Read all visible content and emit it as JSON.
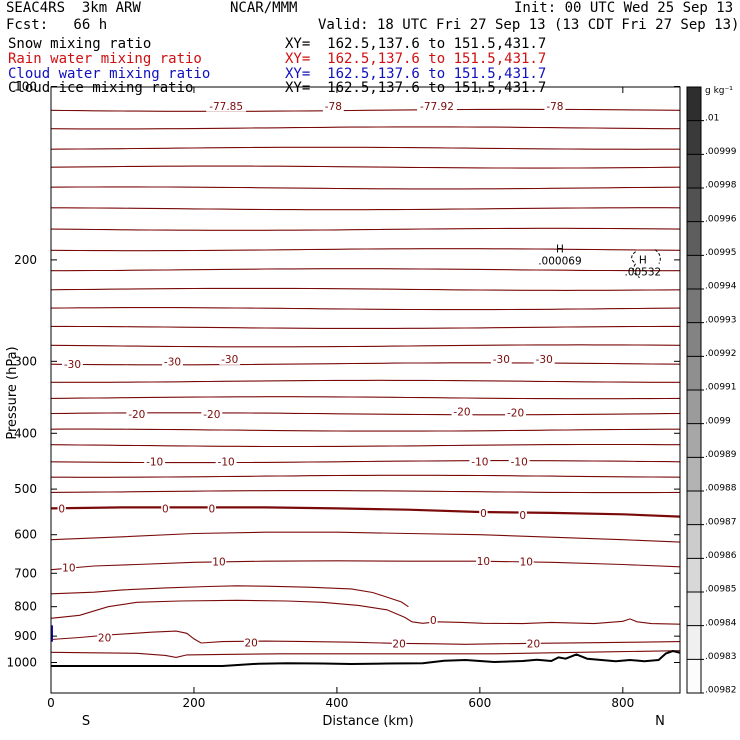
{
  "header": {
    "left1": "SEAC4RS  3km ARW",
    "center1": "NCAR/MMM",
    "right1": "Init: 00 UTC Wed 25 Sep 13",
    "left2": "Fcst:   66 h",
    "right2": "Valid: 18 UTC Fri 27 Sep 13 (13 CDT Fri 27 Sep 13)",
    "fields": [
      {
        "name": "Snow mixing ratio",
        "xy": "XY=  162.5,137.6 to 151.5,431.7",
        "color": "#000000"
      },
      {
        "name": "Rain water mixing ratio",
        "xy": "XY=  162.5,137.6 to 151.5,431.7",
        "color": "#d01010"
      },
      {
        "name": "Cloud water mixing ratio",
        "xy": "XY=  162.5,137.6 to 151.5,431.7",
        "color": "#1010c0"
      },
      {
        "name": "Cloud ice mixing ratio",
        "xy": "XY=  162.5,137.6 to 151.5,431.7",
        "color": "#000000"
      }
    ]
  },
  "chart_data": {
    "type": "line",
    "xlabel": "Distance (km)",
    "ylabel": "Pressure (hPa)",
    "xlim": [
      0,
      880
    ],
    "ylim": [
      1050,
      100
    ],
    "yscale": "log",
    "x_ticks": [
      "0",
      "200",
      "400",
      "600",
      "800"
    ],
    "y_ticks": [
      "100",
      "200",
      "300",
      "400",
      "500",
      "600",
      "700",
      "800",
      "900",
      "1000"
    ],
    "end_labels": {
      "left": "S",
      "right": "N"
    },
    "contour_labels": [
      {
        "text": "-77.85",
        "x": 245,
        "p": 108
      },
      {
        "text": "-78",
        "x": 395,
        "p": 108
      },
      {
        "text": "-77.92",
        "x": 540,
        "p": 108
      },
      {
        "text": "-78",
        "x": 705,
        "p": 108
      },
      {
        "text": "-30",
        "x": 30,
        "p": 303
      },
      {
        "text": "-30",
        "x": 170,
        "p": 300
      },
      {
        "text": "-30",
        "x": 250,
        "p": 297
      },
      {
        "text": "-30",
        "x": 630,
        "p": 297
      },
      {
        "text": "-30",
        "x": 690,
        "p": 297
      },
      {
        "text": "-20",
        "x": 120,
        "p": 370
      },
      {
        "text": "-20",
        "x": 225,
        "p": 370
      },
      {
        "text": "-20",
        "x": 575,
        "p": 367
      },
      {
        "text": "-20",
        "x": 650,
        "p": 368
      },
      {
        "text": "-10",
        "x": 145,
        "p": 448
      },
      {
        "text": "-10",
        "x": 245,
        "p": 448
      },
      {
        "text": "-10",
        "x": 600,
        "p": 448
      },
      {
        "text": "-10",
        "x": 655,
        "p": 448
      },
      {
        "text": "0",
        "x": 15,
        "p": 540
      },
      {
        "text": "0",
        "x": 160,
        "p": 540
      },
      {
        "text": "0",
        "x": 225,
        "p": 540
      },
      {
        "text": "0",
        "x": 605,
        "p": 550
      },
      {
        "text": "0",
        "x": 660,
        "p": 555
      },
      {
        "text": "10",
        "x": 25,
        "p": 684
      },
      {
        "text": "10",
        "x": 235,
        "p": 668
      },
      {
        "text": "10",
        "x": 605,
        "p": 666
      },
      {
        "text": "10",
        "x": 665,
        "p": 668
      },
      {
        "text": "0",
        "x": 535,
        "p": 843
      },
      {
        "text": "20",
        "x": 75,
        "p": 905
      },
      {
        "text": "20",
        "x": 280,
        "p": 923
      },
      {
        "text": "20",
        "x": 487,
        "p": 927
      },
      {
        "text": "20",
        "x": 675,
        "p": 927
      }
    ],
    "extrema": [
      {
        "letter": "H",
        "value": ".000069",
        "x": 712,
        "p": 194
      },
      {
        "letter": "H",
        "value": ".00532",
        "x": 828,
        "p": 203
      }
    ],
    "colorbar": {
      "unit": "g kg⁻¹",
      "labels": [
        ".01",
        ".00999",
        ".00998",
        ".00996",
        ".00995",
        ".00994",
        ".00993",
        ".00992",
        ".00991",
        ".0099",
        ".00989",
        ".00988",
        ".00987",
        ".00986",
        ".00985",
        ".00984",
        ".00983",
        ".00982"
      ]
    },
    "series": [
      {
        "color": "#000000",
        "width": 2,
        "points": [
          [
            0,
            1014
          ],
          [
            240,
            1014
          ],
          [
            290,
            1005
          ],
          [
            330,
            1003
          ],
          [
            380,
            1004
          ],
          [
            420,
            1006
          ],
          [
            470,
            1004
          ],
          [
            520,
            1003
          ],
          [
            550,
            993
          ],
          [
            580,
            990
          ],
          [
            620,
            998
          ],
          [
            650,
            995
          ],
          [
            660,
            994
          ],
          [
            680,
            989
          ],
          [
            700,
            994
          ],
          [
            710,
            980
          ],
          [
            720,
            985
          ],
          [
            735,
            968
          ],
          [
            750,
            985
          ],
          [
            770,
            990
          ],
          [
            790,
            995
          ],
          [
            810,
            990
          ],
          [
            830,
            995
          ],
          [
            850,
            990
          ],
          [
            860,
            965
          ],
          [
            870,
            955
          ],
          [
            880,
            962
          ]
        ]
      },
      {
        "color": "#7a0a0a",
        "width": 2.2,
        "points": [
          [
            0,
            540
          ],
          [
            100,
            538
          ],
          [
            200,
            538
          ],
          [
            300,
            538
          ],
          [
            400,
            540
          ],
          [
            500,
            543
          ],
          [
            600,
            548
          ],
          [
            700,
            550
          ],
          [
            800,
            553
          ],
          [
            880,
            558
          ]
        ]
      }
    ],
    "blue_segment": {
      "color": "#1010c0",
      "x": 0,
      "p_from": 862,
      "p_to": 920
    }
  }
}
